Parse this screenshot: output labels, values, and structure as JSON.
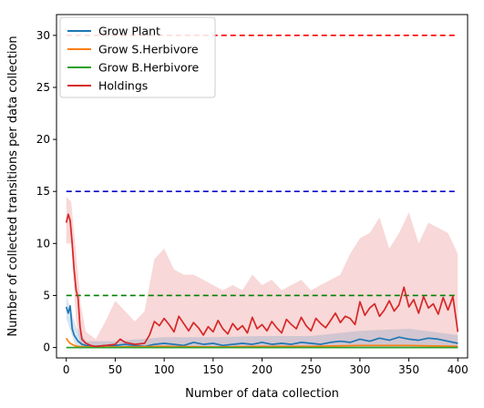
{
  "chart_data": {
    "type": "line",
    "title": "",
    "xlabel": "Number of data collection",
    "ylabel": "Number of collected transitions per data collection",
    "xlim": [
      -10,
      410
    ],
    "ylim": [
      -1,
      32
    ],
    "xticks": [
      0,
      50,
      100,
      150,
      200,
      250,
      300,
      350,
      400
    ],
    "yticks": [
      0,
      5,
      10,
      15,
      20,
      25,
      30
    ],
    "grid": false,
    "legend_position": "top-left",
    "series": [
      {
        "name": "Grow Plant",
        "color": "#1f77b4",
        "x": [
          0,
          2,
          4,
          6,
          8,
          12,
          16,
          20,
          30,
          40,
          50,
          60,
          70,
          80,
          90,
          100,
          110,
          120,
          130,
          140,
          150,
          160,
          170,
          180,
          190,
          200,
          210,
          220,
          230,
          240,
          250,
          260,
          270,
          280,
          290,
          300,
          310,
          320,
          330,
          340,
          350,
          360,
          370,
          380,
          390,
          400
        ],
        "y": [
          3.9,
          3.3,
          4.0,
          1.8,
          1.2,
          0.6,
          0.3,
          0.2,
          0.1,
          0.2,
          0.2,
          0.3,
          0.2,
          0.1,
          0.3,
          0.4,
          0.3,
          0.2,
          0.5,
          0.3,
          0.4,
          0.2,
          0.3,
          0.4,
          0.3,
          0.5,
          0.3,
          0.4,
          0.3,
          0.5,
          0.4,
          0.3,
          0.5,
          0.6,
          0.5,
          0.8,
          0.6,
          0.9,
          0.7,
          1.0,
          0.8,
          0.7,
          0.9,
          0.8,
          0.6,
          0.4
        ]
      },
      {
        "name": "Grow S.Herbivore",
        "color": "#ff7f0e",
        "x": [
          0,
          2,
          4,
          8,
          12,
          20,
          50,
          100,
          150,
          200,
          250,
          300,
          350,
          400
        ],
        "y": [
          0.9,
          0.6,
          0.4,
          0.2,
          0.1,
          0.05,
          0.05,
          0.1,
          0.05,
          0.1,
          0.1,
          0.2,
          0.2,
          0.1
        ]
      },
      {
        "name": "Grow B.Herbivore",
        "color": "#2ca02c",
        "x": [
          0,
          100,
          200,
          300,
          400
        ],
        "y": [
          0,
          0,
          0,
          0,
          0
        ]
      },
      {
        "name": "Holdings",
        "color": "#d62728",
        "x": [
          0,
          2,
          4,
          6,
          8,
          10,
          12,
          14,
          16,
          20,
          25,
          30,
          40,
          50,
          55,
          60,
          70,
          80,
          85,
          90,
          95,
          100,
          105,
          110,
          115,
          120,
          125,
          130,
          135,
          140,
          145,
          150,
          155,
          160,
          165,
          170,
          175,
          180,
          185,
          190,
          195,
          200,
          205,
          210,
          215,
          220,
          225,
          230,
          235,
          240,
          245,
          250,
          255,
          260,
          265,
          270,
          275,
          280,
          285,
          290,
          295,
          300,
          305,
          310,
          315,
          320,
          325,
          330,
          335,
          340,
          345,
          350,
          355,
          360,
          365,
          370,
          375,
          380,
          385,
          390,
          395,
          400
        ],
        "y": [
          12.0,
          12.8,
          12.2,
          10.0,
          7.5,
          5.5,
          4.8,
          2.0,
          0.8,
          0.4,
          0.2,
          0.1,
          0.2,
          0.3,
          0.8,
          0.5,
          0.3,
          0.4,
          1.2,
          2.5,
          2.1,
          2.8,
          2.2,
          1.5,
          3.0,
          2.3,
          1.6,
          2.4,
          1.9,
          1.2,
          2.0,
          1.5,
          2.6,
          1.8,
          1.3,
          2.3,
          1.7,
          2.1,
          1.4,
          2.9,
          1.8,
          2.2,
          1.6,
          2.5,
          1.9,
          1.4,
          2.7,
          2.2,
          1.8,
          2.9,
          2.1,
          1.6,
          2.8,
          2.3,
          1.9,
          2.6,
          3.3,
          2.4,
          3.0,
          2.8,
          2.2,
          4.4,
          3.1,
          3.8,
          4.2,
          3.0,
          3.6,
          4.5,
          3.5,
          4.1,
          5.8,
          3.9,
          4.6,
          3.3,
          4.9,
          3.8,
          4.2,
          3.2,
          4.8,
          3.6,
          4.9,
          1.5
        ]
      }
    ],
    "bands": [
      {
        "series": "Holdings",
        "color": "#d62728",
        "x": [
          0,
          5,
          10,
          15,
          20,
          30,
          40,
          50,
          60,
          70,
          80,
          90,
          100,
          110,
          120,
          130,
          140,
          150,
          160,
          170,
          180,
          190,
          200,
          210,
          220,
          230,
          240,
          250,
          260,
          270,
          280,
          290,
          300,
          310,
          320,
          330,
          340,
          350,
          360,
          370,
          380,
          390,
          400
        ],
        "upper": [
          14.5,
          14.0,
          9.0,
          4.0,
          1.5,
          0.8,
          2.5,
          4.5,
          3.5,
          2.5,
          3.5,
          8.5,
          9.5,
          7.5,
          7.0,
          7.0,
          6.5,
          6.0,
          5.5,
          6.0,
          5.5,
          7.0,
          6.0,
          6.5,
          5.5,
          6.0,
          6.5,
          5.5,
          6.0,
          6.5,
          7.0,
          9.0,
          10.5,
          11.0,
          12.5,
          9.5,
          11.0,
          13.0,
          10.0,
          12.0,
          11.5,
          11.0,
          9.0
        ],
        "lower": [
          10.0,
          10.0,
          2.5,
          0.0,
          0.0,
          0.0,
          0.0,
          0.0,
          0.0,
          0.0,
          0.0,
          0.0,
          0.0,
          0.0,
          0.0,
          0.0,
          0.0,
          0.0,
          0.0,
          0.0,
          0.0,
          0.0,
          0.0,
          0.0,
          0.0,
          0.0,
          0.0,
          0.0,
          0.0,
          0.0,
          0.0,
          0.0,
          0.0,
          0.0,
          0.0,
          0.0,
          0.0,
          0.0,
          0.0,
          0.0,
          0.0,
          0.0,
          0.0
        ]
      },
      {
        "series": "Grow Plant",
        "color": "#1f77b4",
        "x": [
          0,
          10,
          20,
          50,
          100,
          150,
          200,
          250,
          300,
          350,
          400
        ],
        "upper": [
          5.0,
          2.0,
          0.6,
          0.6,
          1.0,
          1.0,
          1.1,
          1.1,
          1.6,
          1.8,
          1.2
        ],
        "lower": [
          2.8,
          0.0,
          0.0,
          0.0,
          0.0,
          0.0,
          0.0,
          0.0,
          0.0,
          0.0,
          0.0
        ]
      }
    ],
    "reference_lines": [
      {
        "y": 30,
        "color": "#ff0000",
        "style": "dashed",
        "x_from": 0,
        "x_to": 400
      },
      {
        "y": 15,
        "color": "#0000cc",
        "style": "dashed",
        "x_from": 0,
        "x_to": 400
      },
      {
        "y": 5,
        "color": "#008000",
        "style": "dashed",
        "x_from": 0,
        "x_to": 400
      }
    ]
  }
}
